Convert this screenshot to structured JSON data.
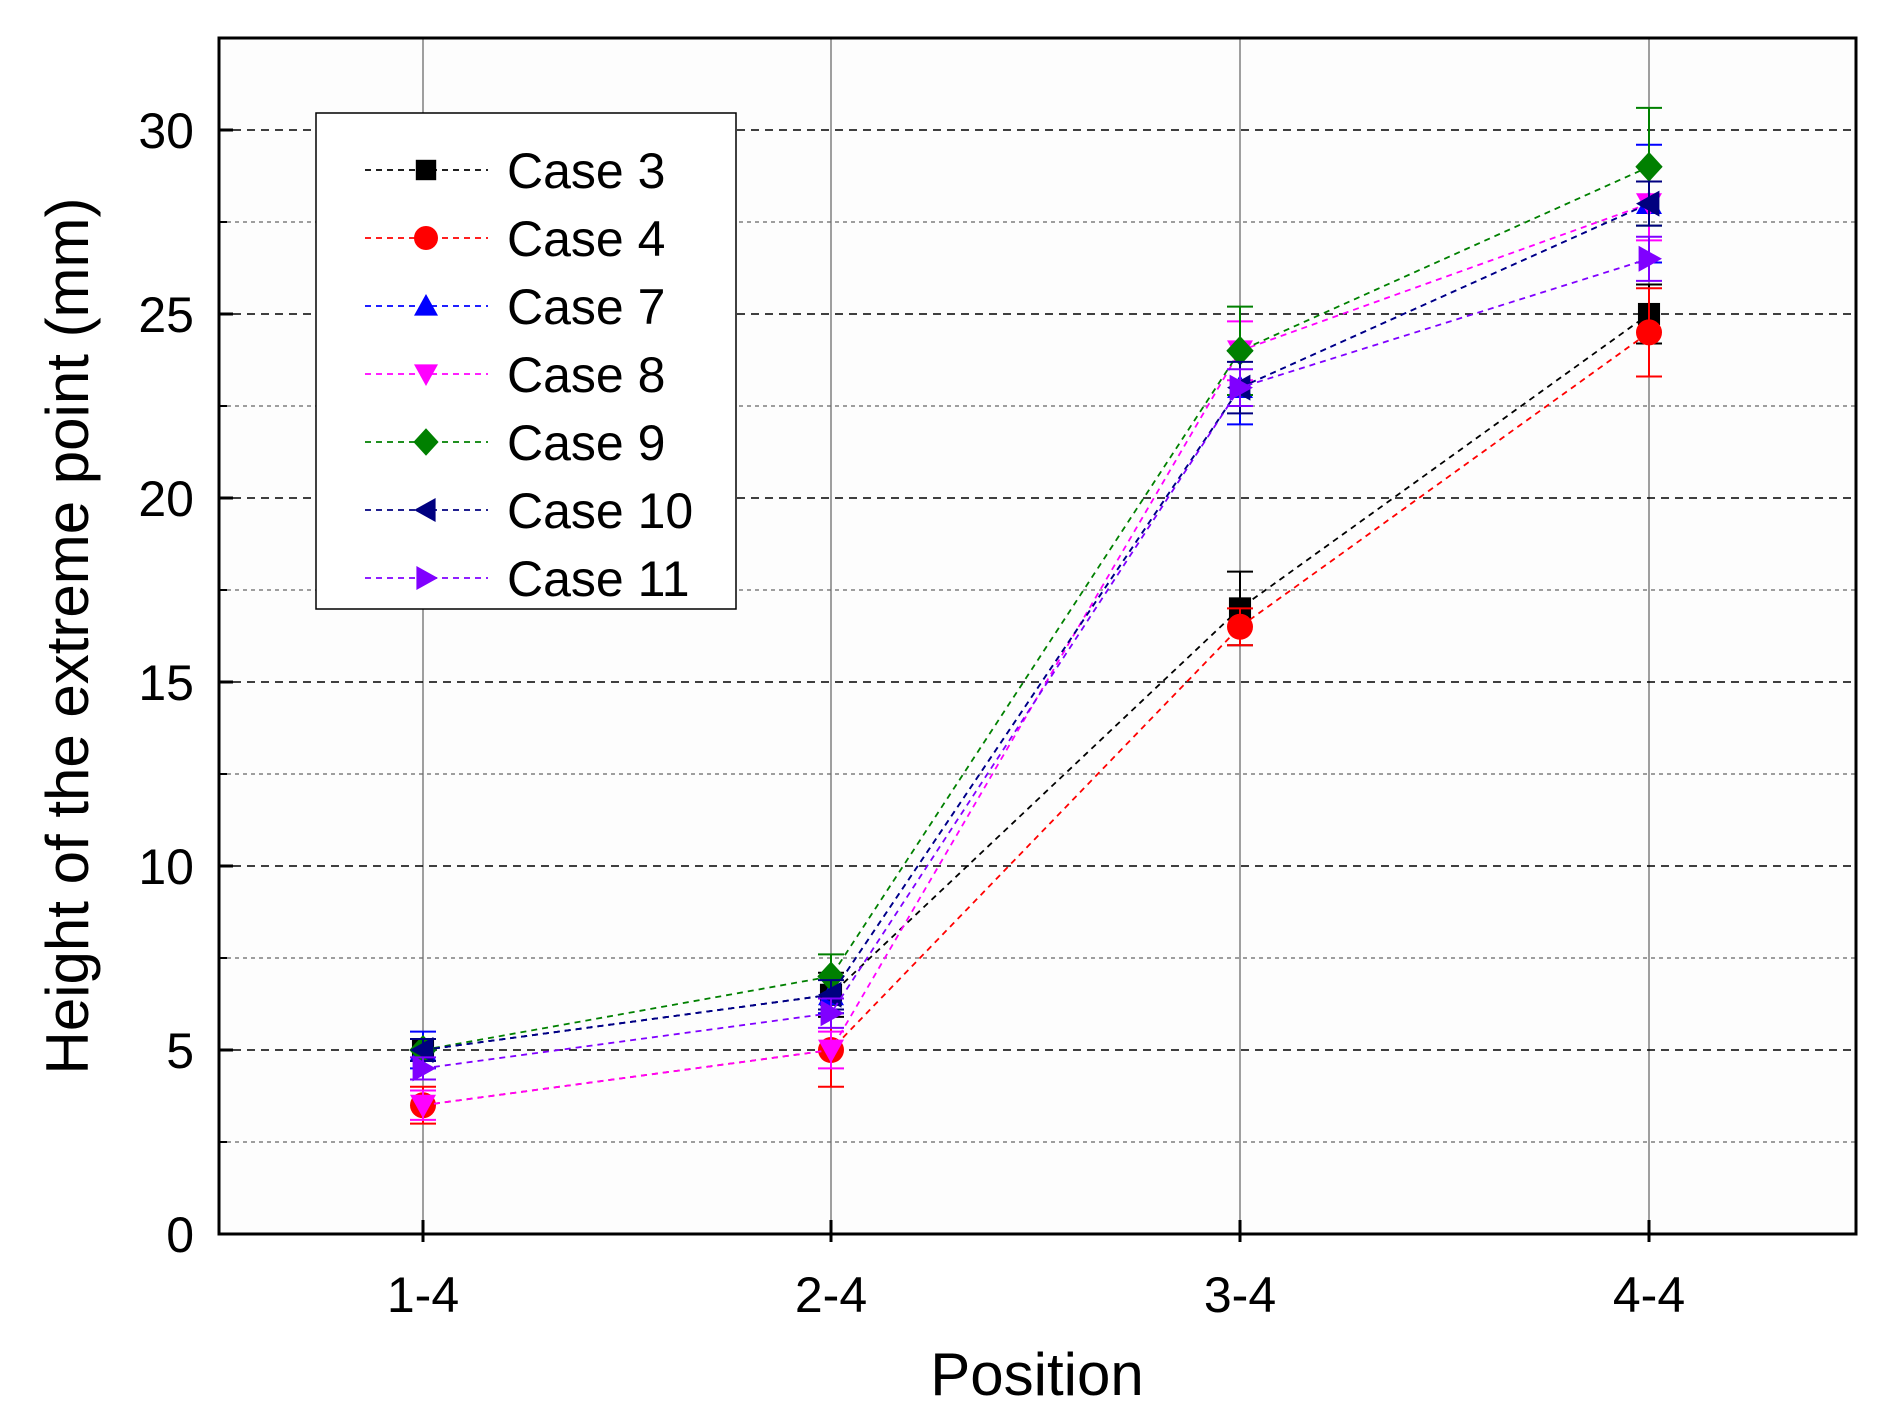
{
  "chart_data": {
    "type": "line",
    "title": "",
    "xlabel": "Position",
    "ylabel": "Height of the extreme point (mm)",
    "categories": [
      "1-4",
      "2-4",
      "3-4",
      "4-4"
    ],
    "ylim": [
      0,
      32.5
    ],
    "yticks": [
      "0",
      "5",
      "10",
      "15",
      "20",
      "25",
      "30"
    ],
    "ytick_values": [
      0,
      5,
      10,
      15,
      20,
      25,
      30
    ],
    "grid": true,
    "legend_position": "top-left",
    "series": [
      {
        "name": "Case 3",
        "color": "#000000",
        "marker": "square",
        "values": [
          5.0,
          6.5,
          17.0,
          25.0
        ],
        "errors": [
          0.3,
          0.6,
          1.0,
          0.8
        ]
      },
      {
        "name": "Case 4",
        "color": "#ff0000",
        "marker": "circle",
        "values": [
          3.5,
          5.0,
          16.5,
          24.5
        ],
        "errors": [
          0.5,
          1.0,
          0.5,
          1.2
        ]
      },
      {
        "name": "Case 7",
        "color": "#0000ff",
        "marker": "triangle-up",
        "values": [
          5.0,
          6.5,
          23.0,
          28.0
        ],
        "errors": [
          0.5,
          0.5,
          1.0,
          1.6
        ]
      },
      {
        "name": "Case 8",
        "color": "#ff00ff",
        "marker": "triangle-down",
        "values": [
          3.5,
          5.0,
          24.0,
          28.0
        ],
        "errors": [
          0.4,
          0.5,
          0.8,
          1.0
        ]
      },
      {
        "name": "Case 9",
        "color": "#008000",
        "marker": "diamond",
        "values": [
          5.0,
          7.0,
          24.0,
          29.0
        ],
        "errors": [
          0.3,
          0.6,
          1.2,
          1.6
        ]
      },
      {
        "name": "Case 10",
        "color": "#000080",
        "marker": "triangle-left",
        "values": [
          5.0,
          6.5,
          23.0,
          28.0
        ],
        "errors": [
          0.3,
          0.4,
          0.7,
          0.6
        ]
      },
      {
        "name": "Case 11",
        "color": "#8000ff",
        "marker": "triangle-right",
        "values": [
          4.5,
          6.0,
          23.0,
          26.5
        ],
        "errors": [
          0.3,
          0.4,
          0.5,
          0.6
        ]
      }
    ]
  }
}
